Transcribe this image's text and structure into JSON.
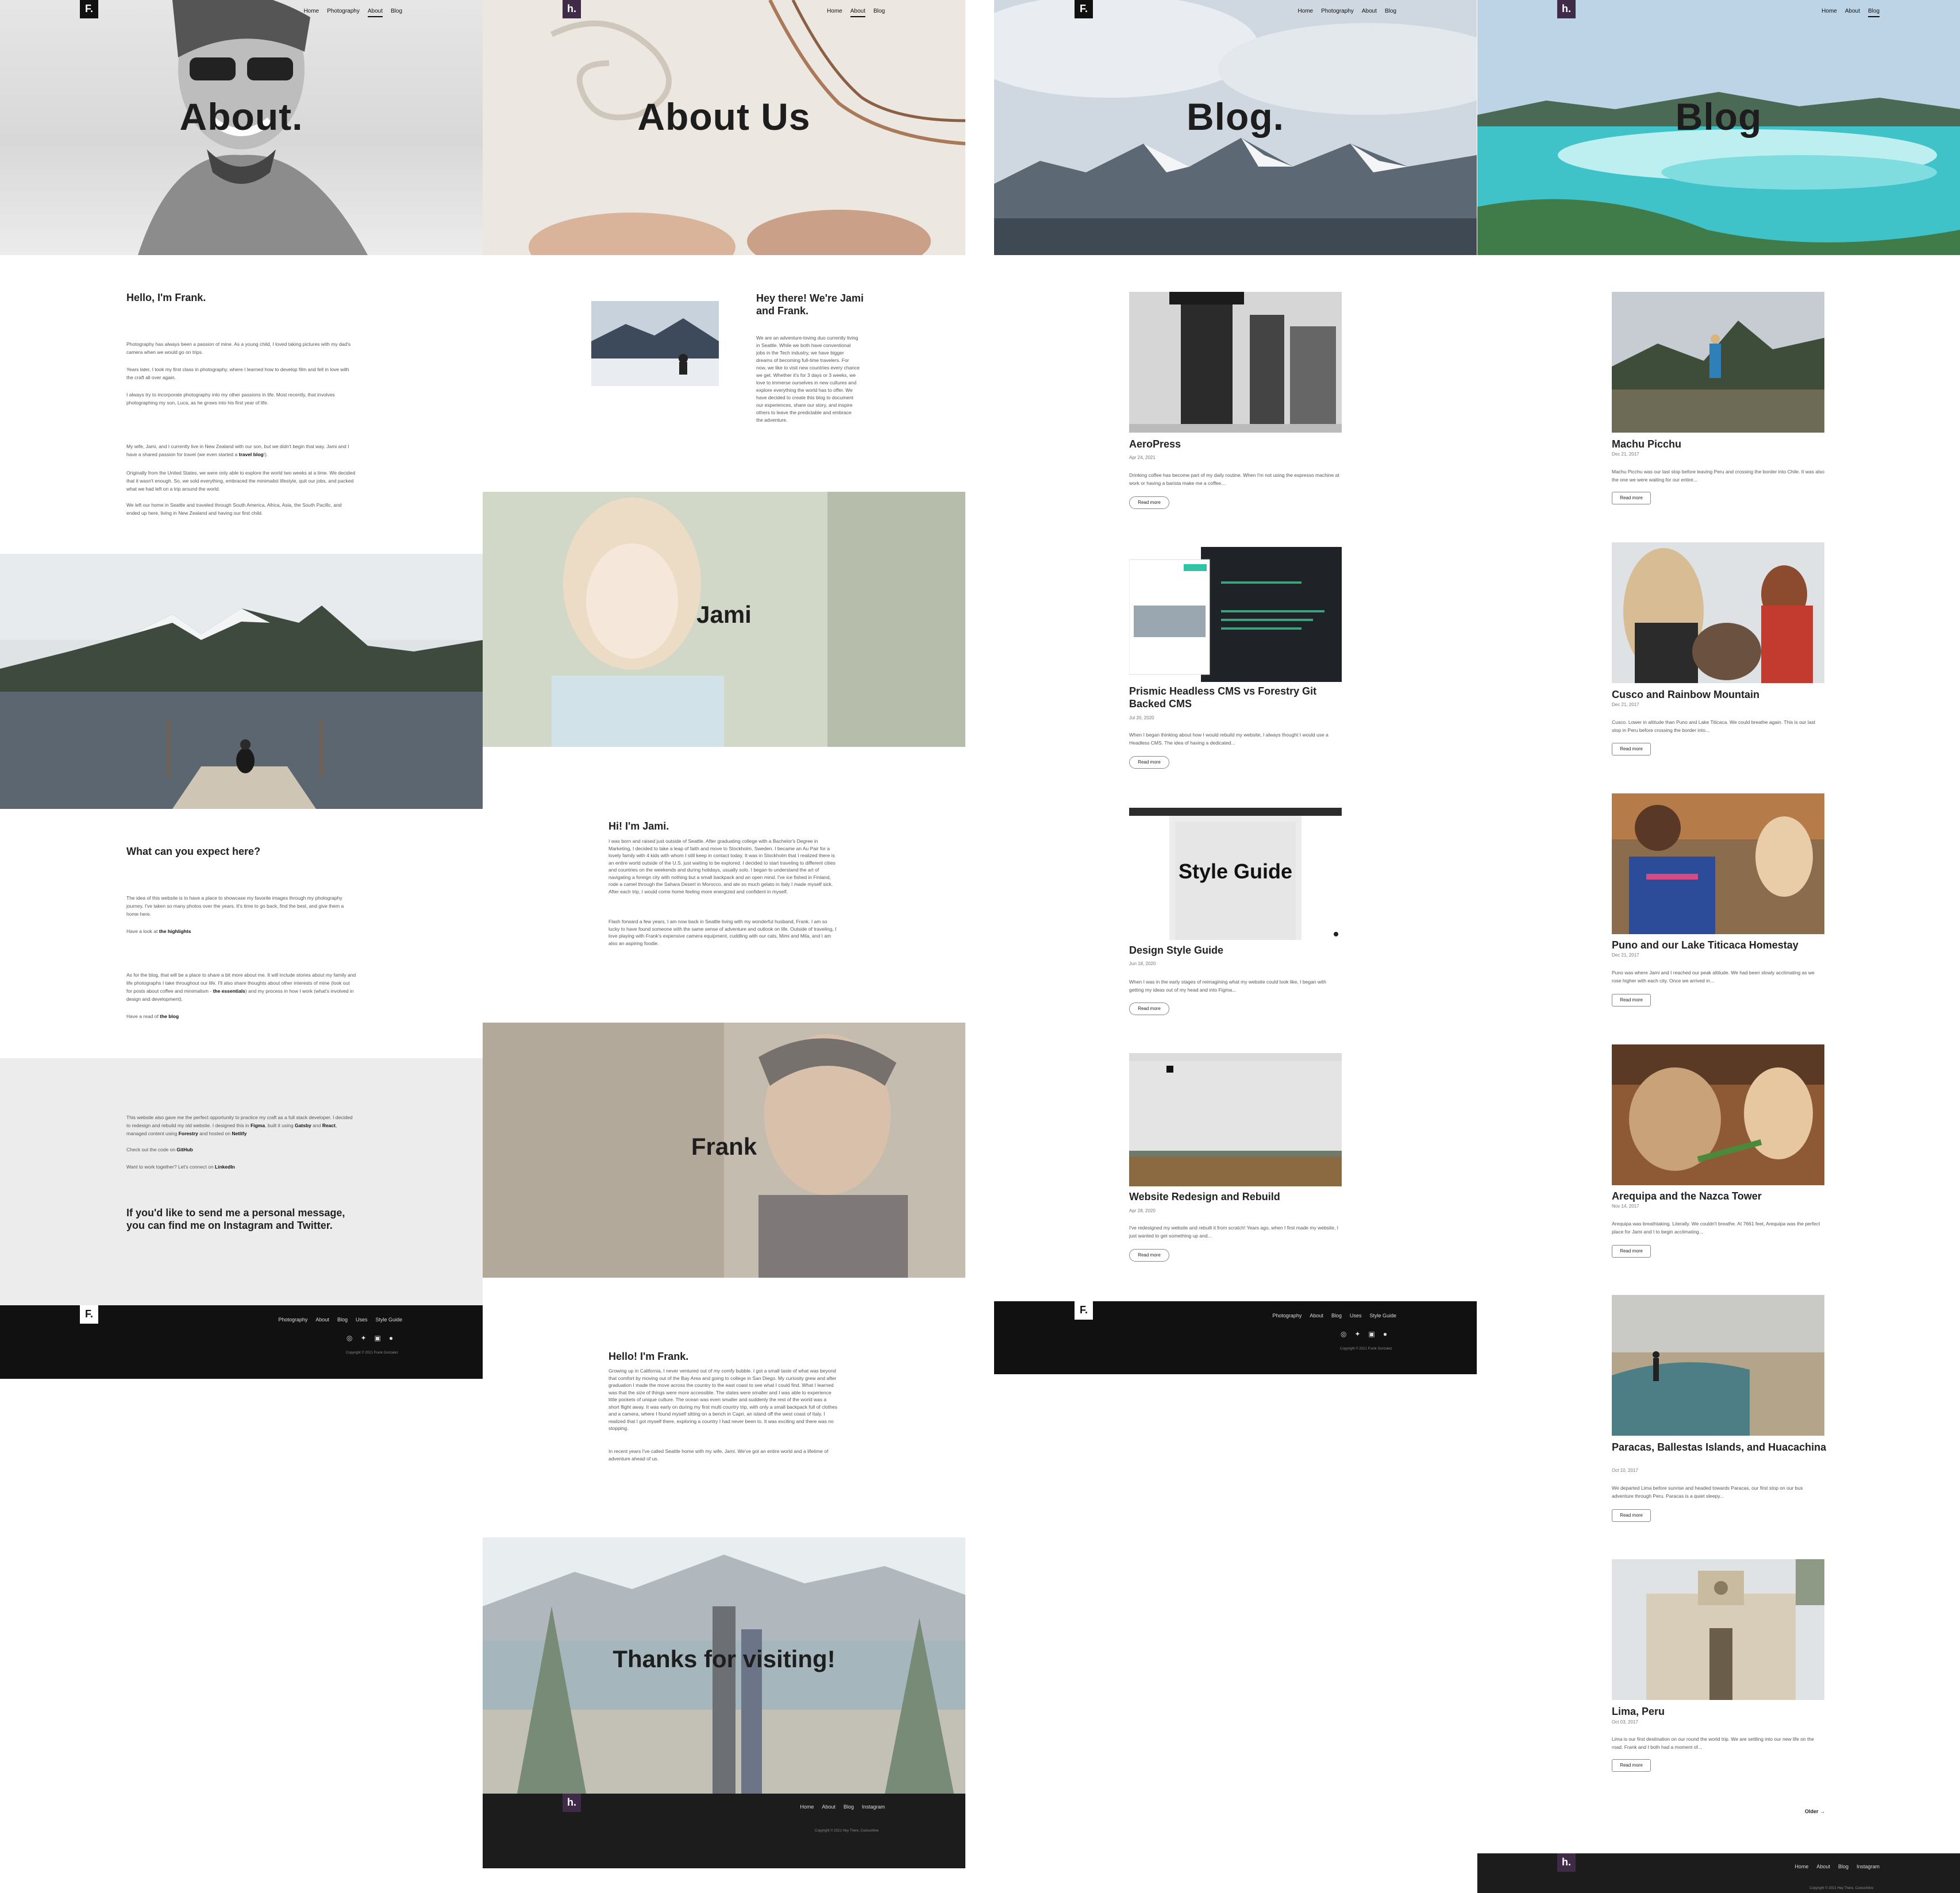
{
  "colors": {
    "footer_dark": "#111111",
    "logo_purple": "#3f2a48",
    "text": "#222222"
  },
  "p1": {
    "logo": "F.",
    "nav": [
      "Home",
      "Photography",
      "About",
      "Blog"
    ],
    "hero_title": "About.",
    "hello": "Hello, I'm Frank.",
    "para1": "Photography has always been a passion of mine. As a young child, I loved taking pictures with my dad's camera when we would go on trips.",
    "para2": "Years later, I took my first class in photography, where I learned how to develop film and fell in love with the craft all over again.",
    "para3": "I always try to incorporate photography into my other passions in life. Most recently, that involves photographing my son, Luca, as he grows into his first year of life.",
    "para4a": "My wife, Jami, and I currently live in New Zealand with our son, but we didn't begin that way. Jami and I have a shared passion for travel (we even started a ",
    "para4b": "travel blog",
    "para4c": "!).",
    "para5": "Originally from the United States, we were only able to explore the world two weeks at a time. We decided that it wasn't enough. So, we sold everything, embraced the minimalist lifestyle, quit our jobs, and packed what we had left on a trip around the world.",
    "para6": "We left our home in Seattle and traveled through South America, Africa, Asia, the South Pacific, and ended up here, living in New Zealand and having our first child.",
    "expect": "What can you expect here?",
    "para7": "The idea of this website is to have a place to showcase my favorite images through my photography journey. I've taken so many photos over the years. It's time to go back, find the best, and give them a home here.",
    "para8a": "Have a look at ",
    "para8b": "the highlights",
    "para9a": "As for the blog, that will be a place to share a bit more about me. It will include stories about my family and life photographs I take throughout our life. I'll also share thoughts about other interests of mine (look out for posts about coffee and minimalism - ",
    "para9b": "the essentials",
    "para9c": ") and my process in how I work (what's involved in design and development).",
    "para10a": "Have a read of ",
    "para10b": "the blog",
    "para11a": "This website also gave me the perfect opportunity to practice my craft as a full stack developer. I decided to redesign and rebuild my old website. I designed this in ",
    "para11b": "Figma",
    "para11c": ", built it using ",
    "para11d": "Gatsby",
    "para11e": " and ",
    "para11f": "React",
    "para11g": ", managed content using ",
    "para11h": "Forestry",
    "para11i": " and hosted on ",
    "para11j": "Netlify",
    "para12a": "Check out the code on ",
    "para12b": "GitHub",
    "para13a": "Want to work together? Let's connect on ",
    "para13b": "LinkedIn",
    "contact": "If you'd like to send me a personal message, you can find me on Instagram and Twitter.",
    "footer_nav": [
      "Photography",
      "About",
      "Blog",
      "Uses",
      "Style Guide"
    ],
    "social": [
      "instagram-icon",
      "twitter-icon",
      "linkedin-icon",
      "github-icon"
    ],
    "copyright": "Copyright © 2021 Frank Gonzalez"
  },
  "p2": {
    "logo": "h.",
    "nav": [
      "Home",
      "About",
      "Blog"
    ],
    "hero_title": "About Us",
    "hey": "Hey there! We're Jami and Frank.",
    "intro": "We are an adventure-loving duo currently living in Seattle. While we both have conventional jobs in the Tech industry, we have bigger dreams of becoming full-time travelers. For now, we like to visit new countries every chance we get. Whether it's for 3 days or 3 weeks, we love to immerse ourselves in new cultures and explore everything the world has to offer. We have decided to create this blog to document our experiences, share our story, and inspire others to leave the predictable and embrace the adventure.",
    "jami_banner": "Jami",
    "jami_title": "Hi! I'm Jami.",
    "jami_p1": "I was born and raised just outside of Seattle. After graduating college with a Bachelor's Degree in Marketing, I decided to take a leap of faith and move to Stockholm, Sweden. I became an Au Pair for a lovely family with 4 kids with whom I still keep in contact today. It was in Stockholm that I realized there is an entire world outside of the U.S. just waiting to be explored. I decided to start traveling to different cities and countries on the weekends and during holidays, usually solo. I began to understand the art of navigating a foreign city with nothing but a small backpack and an open mind. I've ice fished in Finland, rode a camel through the Sahara Desert in Morocco, and ate so much gelato in Italy I made myself sick. After each trip, I would come home feeling more energized and confident in myself.",
    "jami_p2": "Flash forward a few years, I am now back in Seattle living with my wonderful husband, Frank. I am so lucky to have found someone with the same sense of adventure and outlook on life. Outside of traveling, I love playing with Frank's expensive camera equipment, cuddling with our cats, Mimi and Mila, and I am also an aspiring foodie.",
    "frank_banner": "Frank",
    "frank_title": "Hello! I'm Frank.",
    "frank_p1": "Growing up in California, I never ventured out of my comfy bubble. I got a small taste of what was beyond that comfort by moving out of the Bay Area and going to college in San Diego. My curiosity grew and after graduation I made the move across the country to the east coast to see what I could find. What I learned was that the size of things were more accessible. The states were smaller and I was able to experience little pockets of unique culture. The ocean was even smaller and suddenly the rest of the world was a short flight away. It was early on during my first multi country trip, with only a small backpack full of clothes and a camera, where I found myself sitting on a bench in Capri, an island off the west coast of Italy. I realized that I got myself there, exploring a country I had never been to. It was exciting and there was no stopping.",
    "frank_p2": "In recent years I've called Seattle home with my wife, Jami. We've got an entire world and a lifetime of adventure ahead of us.",
    "thanks": "Thanks for visiting!",
    "footer_nav": [
      "Home",
      "About",
      "Blog",
      "Instagram"
    ],
    "copyright": "Copyright © 2021 Hey There, Cutouchtive"
  },
  "p3": {
    "logo": "F.",
    "nav": [
      "Home",
      "Photography",
      "About",
      "Blog"
    ],
    "hero_title": "Blog.",
    "read_more": "Read more",
    "posts": [
      {
        "title": "AeroPress",
        "date": "Apr 24, 2021",
        "excerpt": "Drinking coffee has become part of my daily routine. When I'm not using the espresso machine at work or having a barista make me a coffee..."
      },
      {
        "title": "Prismic Headless CMS vs Forestry Git Backed CMS",
        "date": "Jul 20, 2020",
        "excerpt": "When I began thinking about how I would rebuild my website, I always thought I would use a Headless CMS. The idea of having a dedicated..."
      },
      {
        "title": "Design Style Guide",
        "date": "Jun 18, 2020",
        "excerpt": "When I was in the early stages of reimagining what my website could look like, I began with getting my ideas out of my head and into Figma..."
      },
      {
        "title": "Website Redesign and Rebuild",
        "date": "Apr 28, 2020",
        "excerpt": "I've redesigned my website and rebuilt it from scratch! Years ago, when I first made my website, I just wanted to get something up and..."
      }
    ],
    "style_guide_overlay": "Style Guide",
    "footer_nav": [
      "Photography",
      "About",
      "Blog",
      "Uses",
      "Style Guide"
    ],
    "social": [
      "instagram-icon",
      "twitter-icon",
      "linkedin-icon",
      "github-icon"
    ],
    "copyright": "Copyright © 2021 Frank Gonzalez"
  },
  "p4": {
    "logo": "h.",
    "nav": [
      "Home",
      "About",
      "Blog"
    ],
    "hero_title": "Blog",
    "read_more": "Read more",
    "posts": [
      {
        "title": "Machu Picchu",
        "date": "Dec 21, 2017",
        "excerpt": "Machu Picchu was our last stop before leaving Peru and crossing the border into Chile. It was also the one we were waiting for our entire..."
      },
      {
        "title": "Cusco and Rainbow Mountain",
        "date": "Dec 21, 2017",
        "excerpt": "Cusco. Lower in altitude than Puno and Lake Titicaca. We could breathe again. This is our last stop in Peru before crossing the border into..."
      },
      {
        "title": "Puno and our Lake Titicaca Homestay",
        "date": "Dec 21, 2017",
        "excerpt": "Puno was where Jami and I reached our peak altitude. We had been slowly acclimating as we rose higher with each city. Once we arrived in..."
      },
      {
        "title": "Arequipa and the Nazca Tower",
        "date": "Nov 14, 2017",
        "excerpt": "Arequipa was breathtaking. Literally. We couldn't breathe. At 7661 feet, Arequipa was the perfect place for Jami and I to begin acclimating..."
      },
      {
        "title": "Paracas, Ballestas Islands, and Huacachina",
        "date": "Oct 10, 2017",
        "excerpt": "We departed Lima before sunrise and headed towards Paracas, our first stop on our bus adventure through Peru. Paracas is a quiet sleepy..."
      },
      {
        "title": "Lima, Peru",
        "date": "Oct 03, 2017",
        "excerpt": "Lima is our first destination on our round the world trip. We are settling into our new life on the road. Frank and I both had a moment of..."
      }
    ],
    "older": "Older →",
    "footer_nav": [
      "Home",
      "About",
      "Blog",
      "Instagram"
    ],
    "copyright": "Copyright © 2021 Hey There, Cutouchtive"
  }
}
